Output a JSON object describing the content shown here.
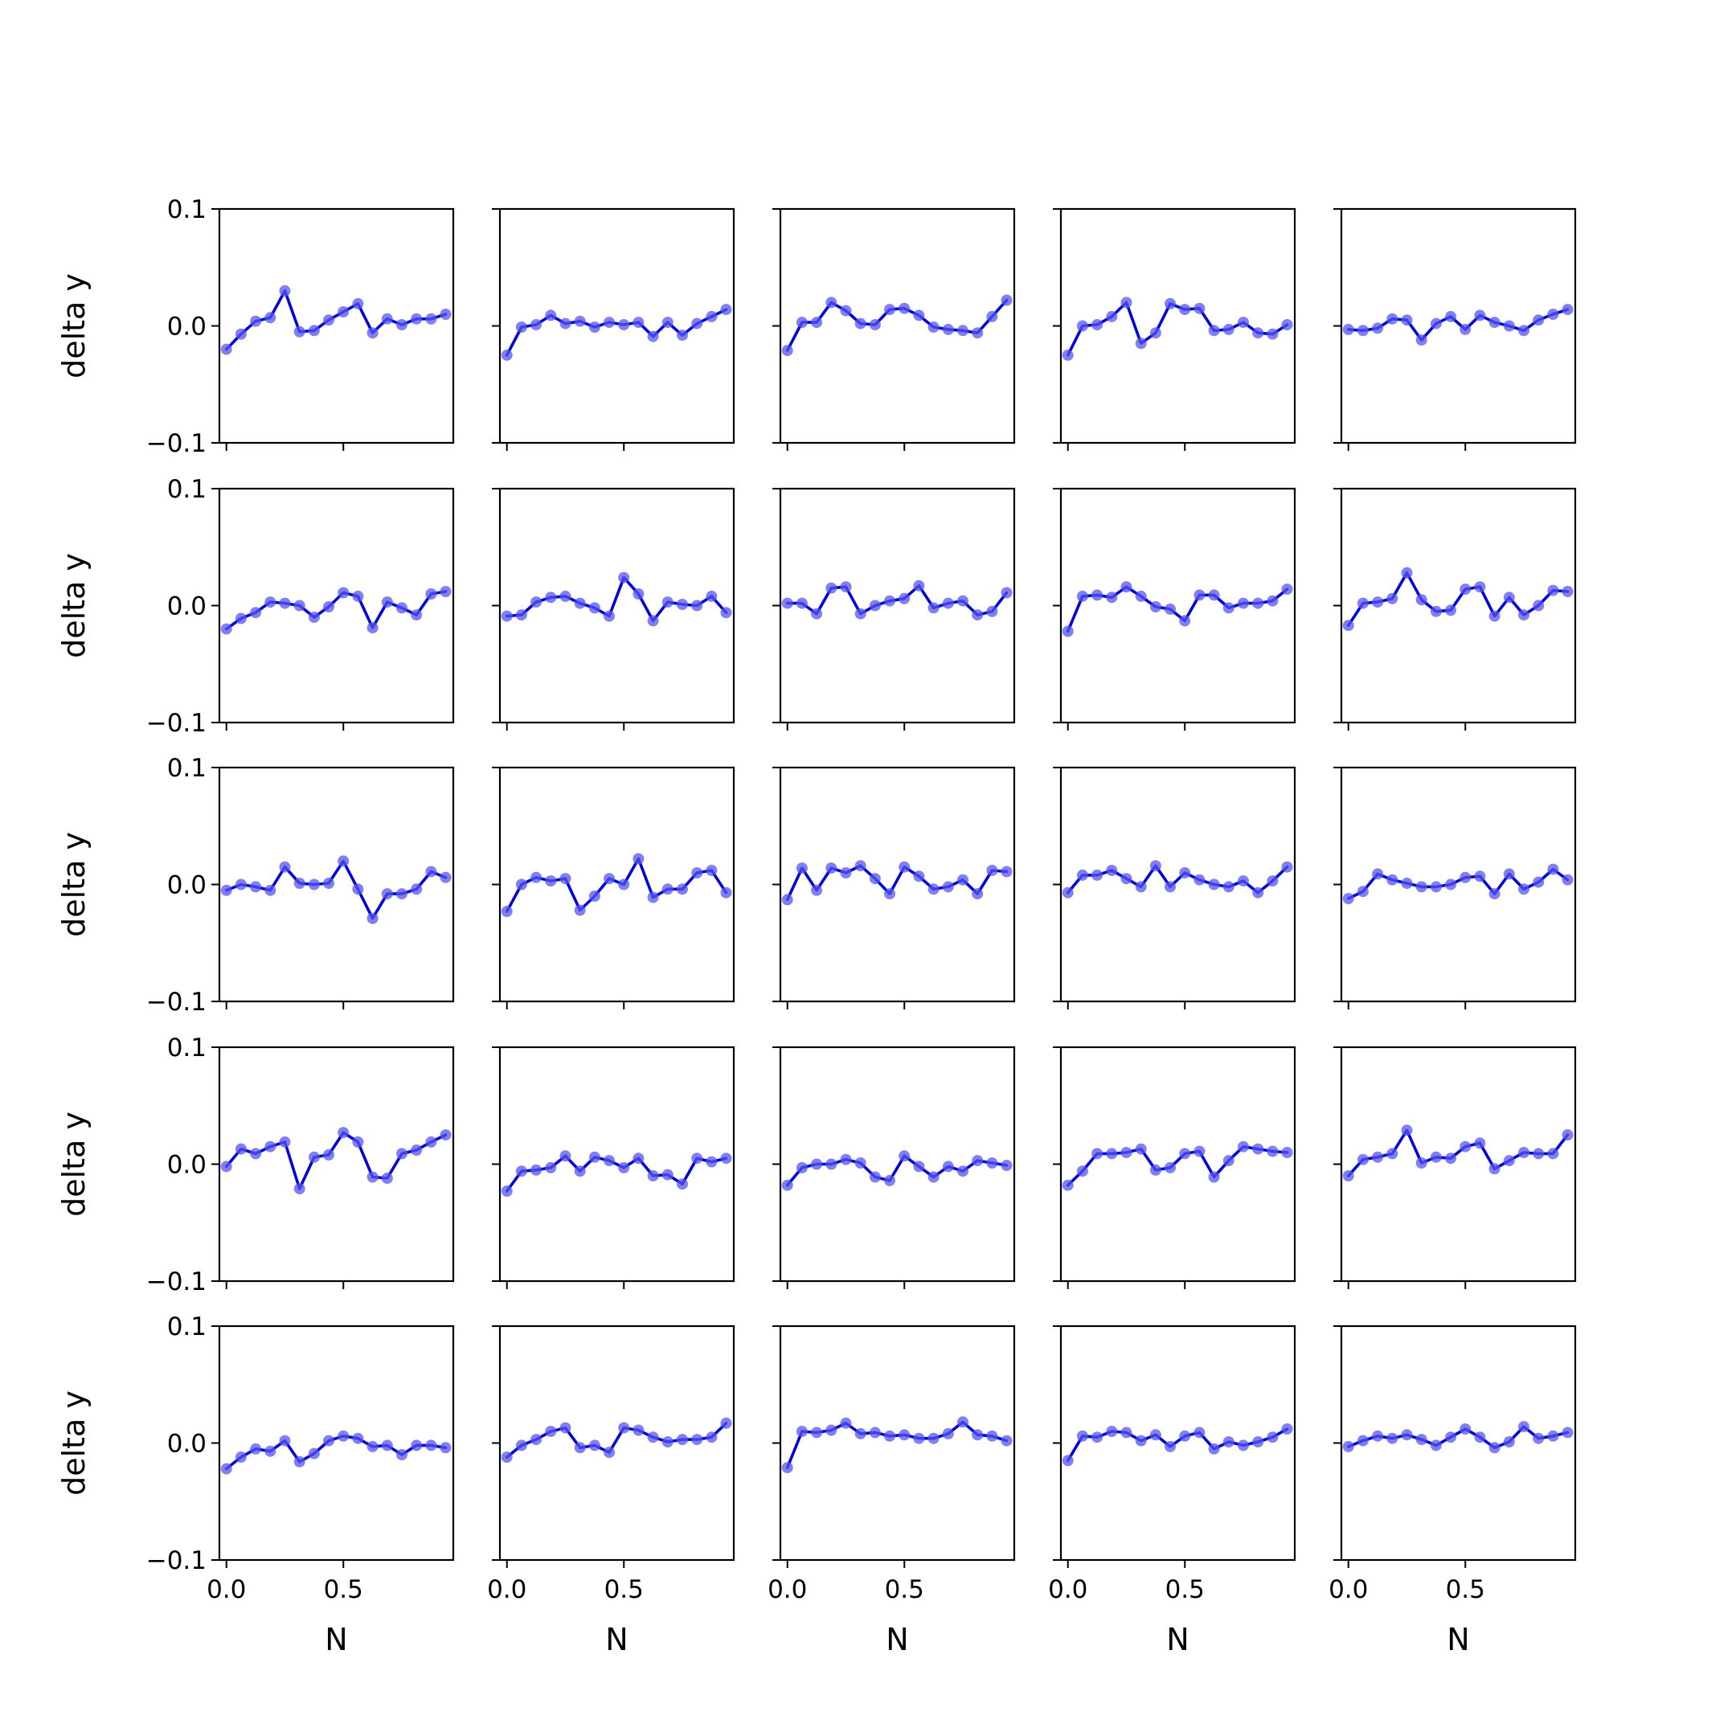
{
  "figure": {
    "line_color": "#0000dd",
    "marker_color": "#5555ee",
    "axis_color": "#000000",
    "background": "#ffffff"
  },
  "chart_data": {
    "type": "line",
    "layout": "5x5 grid of subplots, shared axes",
    "xlabel": "N",
    "ylabel": "delta y",
    "xlim": [
      -0.03,
      0.97
    ],
    "ylim": [
      -0.1,
      0.1
    ],
    "x_ticks": [
      0.0,
      0.5
    ],
    "x_tick_labels": [
      "0.0",
      "0.5"
    ],
    "y_ticks": [
      0.1,
      0.0,
      -0.1
    ],
    "y_tick_labels": [
      "0.1",
      "0.0",
      "−0.1"
    ],
    "grid": false,
    "legend": "none",
    "x": [
      0.0,
      0.0625,
      0.125,
      0.1875,
      0.25,
      0.3125,
      0.375,
      0.4375,
      0.5,
      0.5625,
      0.625,
      0.6875,
      0.75,
      0.8125,
      0.875,
      0.9375
    ],
    "panels": [
      {
        "row": 1,
        "col": 1,
        "values": [
          -0.02,
          -0.007,
          0.004,
          0.007,
          0.03,
          -0.005,
          -0.004,
          0.005,
          0.012,
          0.019,
          -0.006,
          0.006,
          0.001,
          0.006,
          0.006,
          0.01
        ]
      },
      {
        "row": 1,
        "col": 2,
        "values": [
          -0.025,
          -0.001,
          0.001,
          0.009,
          0.002,
          0.004,
          -0.001,
          0.003,
          0.001,
          0.003,
          -0.009,
          0.003,
          -0.008,
          0.002,
          0.008,
          0.014
        ]
      },
      {
        "row": 1,
        "col": 3,
        "values": [
          -0.021,
          0.003,
          0.003,
          0.02,
          0.013,
          0.002,
          0.001,
          0.014,
          0.015,
          0.009,
          -0.001,
          -0.003,
          -0.004,
          -0.006,
          0.008,
          0.022
        ]
      },
      {
        "row": 1,
        "col": 4,
        "values": [
          -0.025,
          0.0,
          0.001,
          0.008,
          0.02,
          -0.015,
          -0.006,
          0.019,
          0.014,
          0.015,
          -0.004,
          -0.003,
          0.003,
          -0.006,
          -0.007,
          0.001
        ]
      },
      {
        "row": 1,
        "col": 5,
        "values": [
          -0.003,
          -0.004,
          -0.002,
          0.006,
          0.005,
          -0.012,
          0.002,
          0.008,
          -0.003,
          0.009,
          0.003,
          0.0,
          -0.004,
          0.005,
          0.01,
          0.014
        ]
      },
      {
        "row": 2,
        "col": 1,
        "values": [
          -0.02,
          -0.011,
          -0.006,
          0.003,
          0.002,
          0.0,
          -0.01,
          -0.001,
          0.011,
          0.008,
          -0.019,
          0.003,
          -0.002,
          -0.008,
          0.01,
          0.012
        ]
      },
      {
        "row": 2,
        "col": 2,
        "values": [
          -0.009,
          -0.008,
          0.003,
          0.007,
          0.008,
          0.002,
          -0.002,
          -0.009,
          0.024,
          0.01,
          -0.013,
          0.003,
          0.001,
          0.0,
          0.008,
          -0.006
        ]
      },
      {
        "row": 2,
        "col": 3,
        "values": [
          0.002,
          0.002,
          -0.007,
          0.015,
          0.016,
          -0.007,
          0.0,
          0.004,
          0.006,
          0.017,
          -0.002,
          0.002,
          0.004,
          -0.008,
          -0.005,
          0.011
        ]
      },
      {
        "row": 2,
        "col": 4,
        "values": [
          -0.022,
          0.008,
          0.009,
          0.007,
          0.016,
          0.008,
          -0.001,
          -0.003,
          -0.013,
          0.009,
          0.009,
          -0.002,
          0.002,
          0.002,
          0.004,
          0.014
        ]
      },
      {
        "row": 2,
        "col": 5,
        "values": [
          -0.017,
          0.002,
          0.003,
          0.006,
          0.028,
          0.005,
          -0.005,
          -0.004,
          0.014,
          0.016,
          -0.009,
          0.007,
          -0.008,
          0.0,
          0.013,
          0.012
        ]
      },
      {
        "row": 3,
        "col": 1,
        "values": [
          -0.005,
          0.0,
          -0.002,
          -0.005,
          0.015,
          0.001,
          0.0,
          0.001,
          0.02,
          -0.004,
          -0.029,
          -0.008,
          -0.008,
          -0.004,
          0.011,
          0.006
        ]
      },
      {
        "row": 3,
        "col": 2,
        "values": [
          -0.023,
          0.0,
          0.006,
          0.003,
          0.005,
          -0.022,
          -0.01,
          0.005,
          0.0,
          0.022,
          -0.011,
          -0.004,
          -0.004,
          0.01,
          0.012,
          -0.007
        ]
      },
      {
        "row": 3,
        "col": 3,
        "values": [
          -0.013,
          0.014,
          -0.005,
          0.014,
          0.01,
          0.016,
          0.005,
          -0.008,
          0.015,
          0.007,
          -0.004,
          -0.002,
          0.004,
          -0.008,
          0.012,
          0.011
        ]
      },
      {
        "row": 3,
        "col": 4,
        "values": [
          -0.007,
          0.008,
          0.008,
          0.012,
          0.005,
          -0.002,
          0.016,
          -0.002,
          0.01,
          0.004,
          0.0,
          -0.002,
          0.003,
          -0.007,
          0.003,
          0.015
        ]
      },
      {
        "row": 3,
        "col": 5,
        "values": [
          -0.012,
          -0.006,
          0.009,
          0.004,
          0.001,
          -0.002,
          -0.002,
          0.0,
          0.006,
          0.007,
          -0.008,
          0.009,
          -0.004,
          0.002,
          0.013,
          0.004
        ]
      },
      {
        "row": 4,
        "col": 1,
        "values": [
          -0.002,
          0.013,
          0.009,
          0.015,
          0.019,
          -0.021,
          0.006,
          0.008,
          0.027,
          0.019,
          -0.011,
          -0.012,
          0.009,
          0.012,
          0.019,
          0.025
        ]
      },
      {
        "row": 4,
        "col": 2,
        "values": [
          -0.023,
          -0.006,
          -0.005,
          -0.003,
          0.007,
          -0.006,
          0.006,
          0.003,
          -0.003,
          0.005,
          -0.01,
          -0.009,
          -0.017,
          0.005,
          0.002,
          0.005
        ]
      },
      {
        "row": 4,
        "col": 3,
        "values": [
          -0.018,
          -0.003,
          0.0,
          0.0,
          0.004,
          0.001,
          -0.011,
          -0.014,
          0.007,
          -0.002,
          -0.011,
          -0.002,
          -0.006,
          0.003,
          0.001,
          -0.001
        ]
      },
      {
        "row": 4,
        "col": 4,
        "values": [
          -0.018,
          -0.006,
          0.009,
          0.009,
          0.01,
          0.013,
          -0.005,
          -0.003,
          0.009,
          0.011,
          -0.011,
          0.003,
          0.015,
          0.013,
          0.011,
          0.01
        ]
      },
      {
        "row": 4,
        "col": 5,
        "values": [
          -0.01,
          0.004,
          0.006,
          0.009,
          0.029,
          0.001,
          0.006,
          0.005,
          0.015,
          0.018,
          -0.004,
          0.003,
          0.01,
          0.009,
          0.009,
          0.025
        ]
      },
      {
        "row": 5,
        "col": 1,
        "values": [
          -0.022,
          -0.012,
          -0.005,
          -0.007,
          0.002,
          -0.016,
          -0.009,
          0.002,
          0.006,
          0.004,
          -0.003,
          -0.002,
          -0.01,
          -0.002,
          -0.002,
          -0.004
        ]
      },
      {
        "row": 5,
        "col": 2,
        "values": [
          -0.012,
          -0.002,
          0.003,
          0.01,
          0.013,
          -0.004,
          -0.002,
          -0.008,
          0.013,
          0.011,
          0.005,
          0.001,
          0.003,
          0.003,
          0.005,
          0.017
        ]
      },
      {
        "row": 5,
        "col": 3,
        "values": [
          -0.021,
          0.01,
          0.009,
          0.011,
          0.017,
          0.008,
          0.009,
          0.006,
          0.007,
          0.004,
          0.004,
          0.008,
          0.018,
          0.007,
          0.006,
          0.002
        ]
      },
      {
        "row": 5,
        "col": 4,
        "values": [
          -0.015,
          0.006,
          0.005,
          0.01,
          0.009,
          0.002,
          0.007,
          -0.003,
          0.006,
          0.009,
          -0.005,
          0.001,
          -0.002,
          0.001,
          0.005,
          0.012
        ]
      },
      {
        "row": 5,
        "col": 5,
        "values": [
          -0.003,
          0.002,
          0.006,
          0.004,
          0.007,
          0.003,
          -0.002,
          0.005,
          0.012,
          0.005,
          -0.004,
          0.001,
          0.014,
          0.004,
          0.006,
          0.009
        ]
      }
    ]
  }
}
